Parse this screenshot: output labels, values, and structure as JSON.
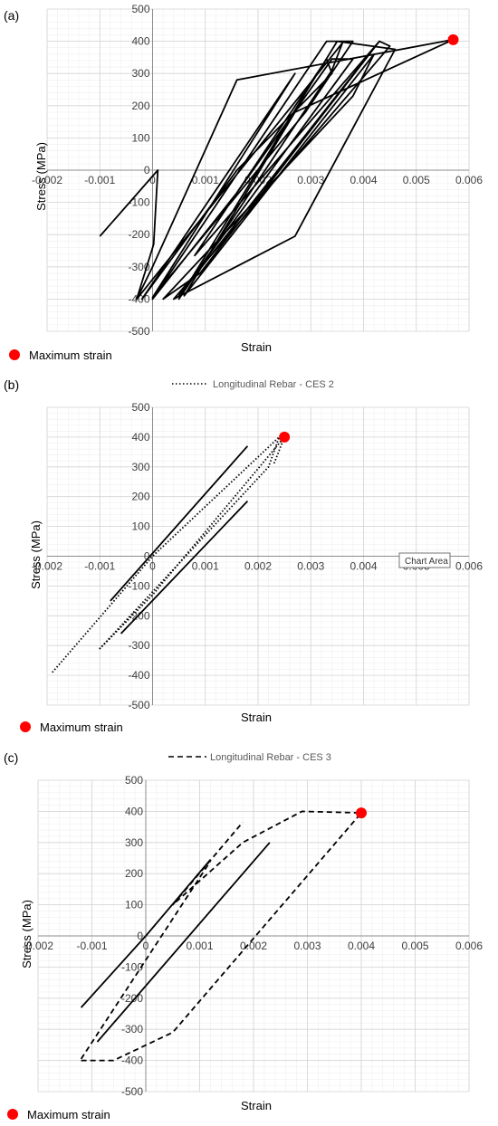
{
  "chart_data": [
    {
      "type": "line",
      "panel_label": "(a)",
      "xlabel": "Strain",
      "ylabel": "Stress (MPa)",
      "xlim": [
        -0.002,
        0.006
      ],
      "ylim": [
        -500,
        500
      ],
      "x_ticks": [
        "-0.002",
        "-0.001",
        "0",
        "0.001",
        "0.002",
        "0.003",
        "0.004",
        "0.005",
        "0.006"
      ],
      "y_ticks": [
        "500",
        "400",
        "300",
        "200",
        "100",
        "0",
        "-100",
        "-200",
        "-300",
        "-400",
        "-500"
      ],
      "grid": true,
      "legend_top": "",
      "legend_bottom": "Maximum strain",
      "max_point": [
        0.0057,
        405
      ],
      "series": [
        {
          "style": "solid",
          "points": [
            [
              -0.001,
              -205
            ],
            [
              0.0001,
              0
            ],
            [
              2e-05,
              -230
            ],
            [
              -0.0003,
              -400
            ],
            [
              0.0036,
              395
            ],
            [
              0.0034,
              310
            ],
            [
              0.0005,
              -400
            ],
            [
              0.0035,
              400
            ],
            [
              0.0046,
              375
            ],
            [
              0.0027,
              -205
            ],
            [
              0.0004,
              -400
            ],
            [
              0.0045,
              385
            ],
            [
              0.0043,
              400
            ],
            [
              0.0005,
              -390
            ],
            [
              0.0038,
              345
            ],
            [
              0.0034,
              345
            ],
            [
              0.0016,
              -70
            ],
            [
              0.0,
              -400
            ],
            [
              0.0033,
              400
            ],
            [
              0.0038,
              400
            ],
            [
              0.0029,
              180
            ],
            [
              0.0,
              -395
            ],
            [
              0.0027,
              300
            ],
            [
              -0.0002,
              -400
            ],
            [
              0.0016,
              0
            ],
            [
              0.0034,
              300
            ],
            [
              0.0033,
              345
            ],
            [
              0.0008,
              -265
            ],
            [
              0.0043,
              400
            ],
            [
              0.0009,
              -320
            ],
            [
              0.0002,
              -400
            ],
            [
              0.0038,
              230
            ],
            [
              0.0042,
              360
            ],
            [
              0.0006,
              -390
            ],
            [
              0.0027,
              180
            ],
            [
              0.0057,
              405
            ],
            [
              0.0016,
              280
            ],
            [
              0.0,
              -300
            ],
            [
              -0.0003,
              -400
            ]
          ]
        }
      ]
    },
    {
      "type": "line",
      "panel_label": "(b)",
      "xlabel": "Strain",
      "ylabel": "Stress (MPa)",
      "xlim": [
        -0.002,
        0.006
      ],
      "ylim": [
        -500,
        500
      ],
      "x_ticks": [
        "-0.002",
        "-0.001",
        "0",
        "0.001",
        "0.002",
        "0.003",
        "0.004",
        "0.005",
        "0.006"
      ],
      "y_ticks": [
        "500",
        "400",
        "300",
        "200",
        "100",
        "0",
        "-100",
        "-200",
        "-300",
        "-400",
        "-500"
      ],
      "grid": true,
      "legend_top": "Longitudinal Rebar - CES 2",
      "legend_bottom": "Maximum strain",
      "tooltip": "Chart Area",
      "max_point": [
        0.0025,
        400
      ],
      "series": [
        {
          "style": "dotted",
          "points": [
            [
              -0.0019,
              -390
            ],
            [
              0.0,
              0
            ],
            [
              0.0024,
              400
            ],
            [
              0.0022,
              300
            ],
            [
              -0.001,
              -310
            ],
            [
              0.0,
              -130
            ],
            [
              0.0025,
              400
            ],
            [
              0.0023,
              310
            ]
          ]
        },
        {
          "style": "solid",
          "points": [
            [
              -0.0008,
              -150
            ],
            [
              0.0018,
              370
            ]
          ]
        },
        {
          "style": "solid",
          "points": [
            [
              -0.0006,
              -260
            ],
            [
              0.0018,
              185
            ]
          ]
        }
      ]
    },
    {
      "type": "line",
      "panel_label": "(c)",
      "xlabel": "Strain",
      "ylabel": "Stress (MPa)",
      "xlim": [
        -0.002,
        0.006
      ],
      "ylim": [
        -500,
        500
      ],
      "x_ticks": [
        "-0.002",
        "-0.001",
        "0",
        "0.001",
        "0.002",
        "0.003",
        "0.004",
        "0.005",
        "0.006"
      ],
      "y_ticks": [
        "500",
        "400",
        "300",
        "200",
        "100",
        "0",
        "-100",
        "-200",
        "-300",
        "-400",
        "-500"
      ],
      "grid": true,
      "legend_top": "Longitudinal Rebar - CES 3",
      "legend_bottom": "Maximum strain",
      "max_point": [
        0.004,
        395
      ],
      "series": [
        {
          "style": "dashed",
          "points": [
            [
              -0.0012,
              -400
            ],
            [
              -0.0006,
              -400
            ],
            [
              0.0005,
              -310
            ],
            [
              0.004,
              395
            ],
            [
              0.0029,
              400
            ],
            [
              0.0018,
              300
            ],
            [
              0.0005,
              100
            ],
            [
              0.0018,
              365
            ]
          ]
        },
        {
          "style": "dashed",
          "points": [
            [
              -0.0012,
              -395
            ],
            [
              0.0012,
              240
            ]
          ]
        },
        {
          "style": "solid",
          "points": [
            [
              -0.0012,
              -230
            ],
            [
              0.0,
              0
            ],
            [
              0.0012,
              245
            ]
          ]
        },
        {
          "style": "solid",
          "points": [
            [
              -0.0009,
              -340
            ],
            [
              0.0023,
              300
            ]
          ]
        }
      ]
    }
  ]
}
